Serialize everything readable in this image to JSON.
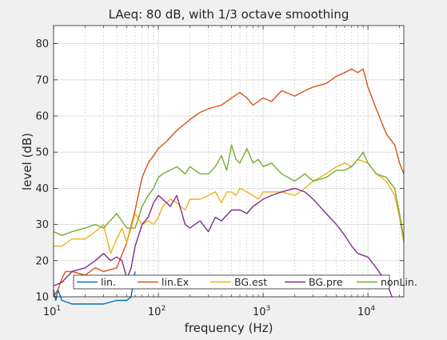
{
  "chart_data": {
    "type": "line",
    "title": "LAeq: 80 dB, with 1/3 octave smoothing",
    "xlabel": "frequency (Hz)",
    "ylabel": "level (dB)",
    "xscale": "log",
    "xlim": [
      10,
      22000
    ],
    "ylim": [
      10,
      85
    ],
    "grid": true,
    "minor_grid_x": true,
    "legend_position": "bottom, horizontal",
    "yticks": [
      10,
      20,
      30,
      40,
      50,
      60,
      70,
      80
    ],
    "xticks": [
      {
        "value": 10,
        "base": "10",
        "exp": "1"
      },
      {
        "value": 100,
        "base": "10",
        "exp": "2"
      },
      {
        "value": 1000,
        "base": "10",
        "exp": "3"
      },
      {
        "value": 10000,
        "base": "10",
        "exp": "4"
      }
    ],
    "series": [
      {
        "name": "lin.",
        "color": "#0072BD",
        "x": [
          10,
          10.5,
          11,
          12,
          15,
          20,
          30,
          40,
          50,
          55,
          60
        ],
        "y": [
          12,
          9,
          12,
          9,
          8,
          8,
          8,
          9,
          9,
          10,
          17
        ]
      },
      {
        "name": "lin.Ex",
        "color": "#D95319",
        "x": [
          10,
          11,
          12,
          13,
          15,
          20,
          25,
          30,
          40,
          50,
          60,
          70,
          80,
          90,
          100,
          120,
          150,
          200,
          250,
          300,
          400,
          500,
          600,
          700,
          800,
          1000,
          1200,
          1500,
          2000,
          2500,
          3000,
          4000,
          5000,
          6000,
          7000,
          8000,
          9000,
          10000,
          12000,
          15000,
          18000,
          20000,
          22000
        ],
        "y": [
          10,
          12,
          15,
          17,
          17,
          16,
          18,
          17,
          18,
          25,
          34,
          43,
          47,
          49,
          51,
          53,
          56,
          59,
          61,
          62,
          63,
          65,
          66.5,
          65,
          63,
          65,
          64,
          67,
          65.5,
          67,
          68,
          69,
          71,
          72,
          73,
          72,
          73,
          68,
          62,
          55,
          52,
          47,
          44
        ]
      },
      {
        "name": "BG.est",
        "color": "#EDB120",
        "x": [
          10,
          12,
          15,
          20,
          25,
          30,
          35,
          40,
          45,
          50,
          55,
          60,
          70,
          80,
          90,
          100,
          110,
          130,
          150,
          180,
          200,
          250,
          300,
          350,
          400,
          450,
          500,
          550,
          600,
          700,
          800,
          900,
          1000,
          1200,
          1500,
          2000,
          2500,
          3000,
          4000,
          5000,
          6000,
          7000,
          8000,
          10000,
          12000,
          15000,
          18000,
          20000,
          22000
        ],
        "y": [
          24,
          24,
          26,
          26,
          28,
          30,
          22,
          26,
          29,
          25,
          29,
          33,
          30,
          31,
          30,
          32,
          35,
          37,
          36,
          34,
          37,
          37,
          38,
          39,
          36,
          39,
          39,
          38,
          40,
          39,
          38,
          37,
          39,
          39,
          39,
          38,
          40,
          42,
          44,
          46,
          47,
          46,
          48,
          47,
          44,
          42,
          38,
          32,
          25
        ]
      },
      {
        "name": "BG.pre",
        "color": "#7E2F8E",
        "x": [
          10,
          12,
          15,
          20,
          25,
          30,
          35,
          40,
          45,
          50,
          55,
          60,
          70,
          80,
          90,
          100,
          110,
          130,
          150,
          180,
          200,
          250,
          300,
          350,
          400,
          500,
          600,
          700,
          800,
          900,
          1000,
          1200,
          1500,
          2000,
          2500,
          3000,
          4000,
          5000,
          6000,
          7000,
          8000,
          10000,
          12000,
          15000,
          17000
        ],
        "y": [
          13,
          14,
          17,
          18,
          20,
          22,
          20,
          21,
          20,
          15,
          18,
          24,
          30,
          32,
          36,
          38,
          37,
          35,
          38,
          30,
          29,
          31,
          28,
          32,
          31,
          34,
          34,
          33,
          35,
          36,
          37,
          38,
          39,
          40,
          39,
          37,
          33,
          30,
          27,
          24,
          22,
          21,
          18,
          14,
          10
        ]
      },
      {
        "name": "nonLin.",
        "color": "#77AC30",
        "x": [
          10,
          12,
          15,
          20,
          25,
          30,
          40,
          50,
          60,
          70,
          80,
          90,
          100,
          110,
          130,
          150,
          180,
          200,
          250,
          300,
          350,
          400,
          450,
          500,
          550,
          600,
          700,
          800,
          900,
          1000,
          1200,
          1500,
          2000,
          2500,
          3000,
          4000,
          5000,
          6000,
          7000,
          8000,
          9000,
          10000,
          12000,
          15000,
          18000,
          20000,
          22000
        ],
        "y": [
          28,
          27,
          28,
          29,
          30,
          29,
          33,
          29,
          29,
          35,
          38,
          40,
          43,
          44,
          45,
          46,
          44,
          46,
          44,
          44,
          46,
          49,
          45,
          52,
          48,
          47,
          51,
          47,
          48,
          46,
          47,
          44,
          42,
          44,
          42,
          43,
          45,
          45,
          46,
          48,
          50,
          47,
          44,
          43,
          40,
          33,
          26
        ]
      }
    ]
  }
}
